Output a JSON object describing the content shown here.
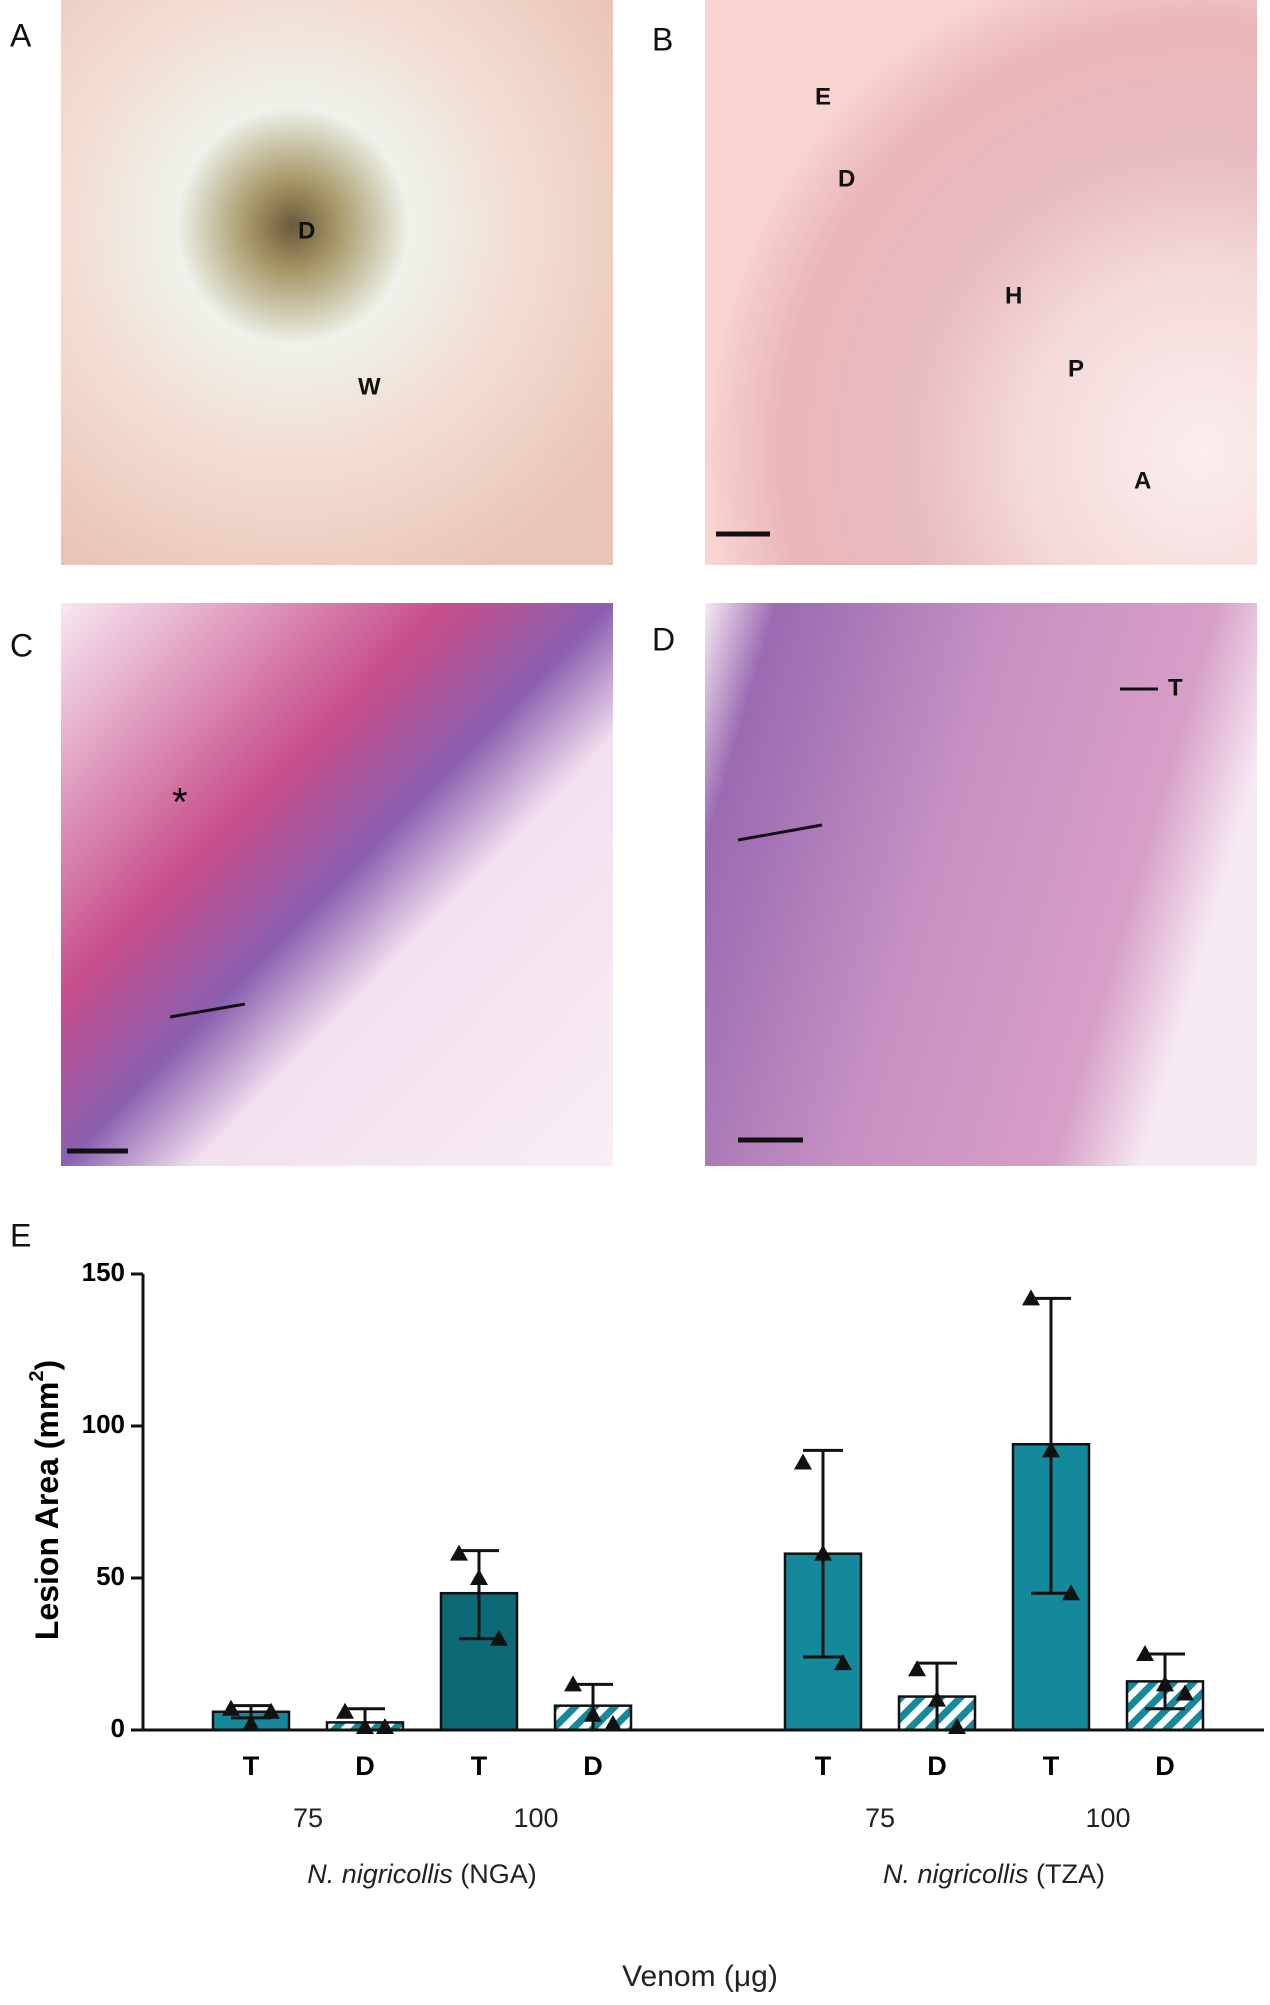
{
  "panels": {
    "labels": [
      "A",
      "B",
      "C",
      "D",
      "E"
    ],
    "a_annotations": [
      "D",
      "W"
    ],
    "b_annotations": [
      "E",
      "D",
      "H",
      "P",
      "A"
    ],
    "c_annotations": [
      "*"
    ],
    "d_annotations": [
      "T"
    ]
  },
  "chart_data": {
    "type": "bar",
    "categories": [
      "T",
      "D",
      "T",
      "D",
      "T",
      "D",
      "T",
      "D"
    ],
    "values": [
      6,
      2.5,
      45,
      8,
      58,
      11,
      94,
      16
    ],
    "error_bar_low": [
      4,
      0,
      30,
      0,
      24,
      0,
      45,
      7
    ],
    "error_bar_high": [
      8,
      7,
      59,
      15,
      92,
      22,
      142,
      25
    ],
    "points": [
      [
        7,
        2,
        6
      ],
      [
        6,
        1,
        1
      ],
      [
        58,
        50,
        30
      ],
      [
        15,
        5,
        2
      ],
      [
        88,
        58,
        22
      ],
      [
        20,
        10,
        1
      ],
      [
        142,
        92,
        45
      ],
      [
        25,
        15,
        12
      ]
    ],
    "colors": [
      "#13899b",
      "#13899b",
      "#0c6a77",
      "#13899b",
      "#13899b",
      "#13899b",
      "#13899b",
      "#13899b"
    ],
    "hatched": [
      false,
      true,
      false,
      true,
      false,
      true,
      false,
      true
    ],
    "doses": [
      "75",
      "100",
      "75",
      "100"
    ],
    "groups": [
      {
        "species": "N. nigricollis",
        "source": "(NGA)"
      },
      {
        "species": "N. nigricollis",
        "source": "(TZA)"
      }
    ],
    "y_label": "Lesion Area (mm",
    "y_label_sup": "2",
    "y_label_end": ")",
    "x_label": "Venom (μg)",
    "ylim": [
      0,
      150
    ],
    "yticks": [
      0,
      50,
      100,
      150
    ]
  }
}
